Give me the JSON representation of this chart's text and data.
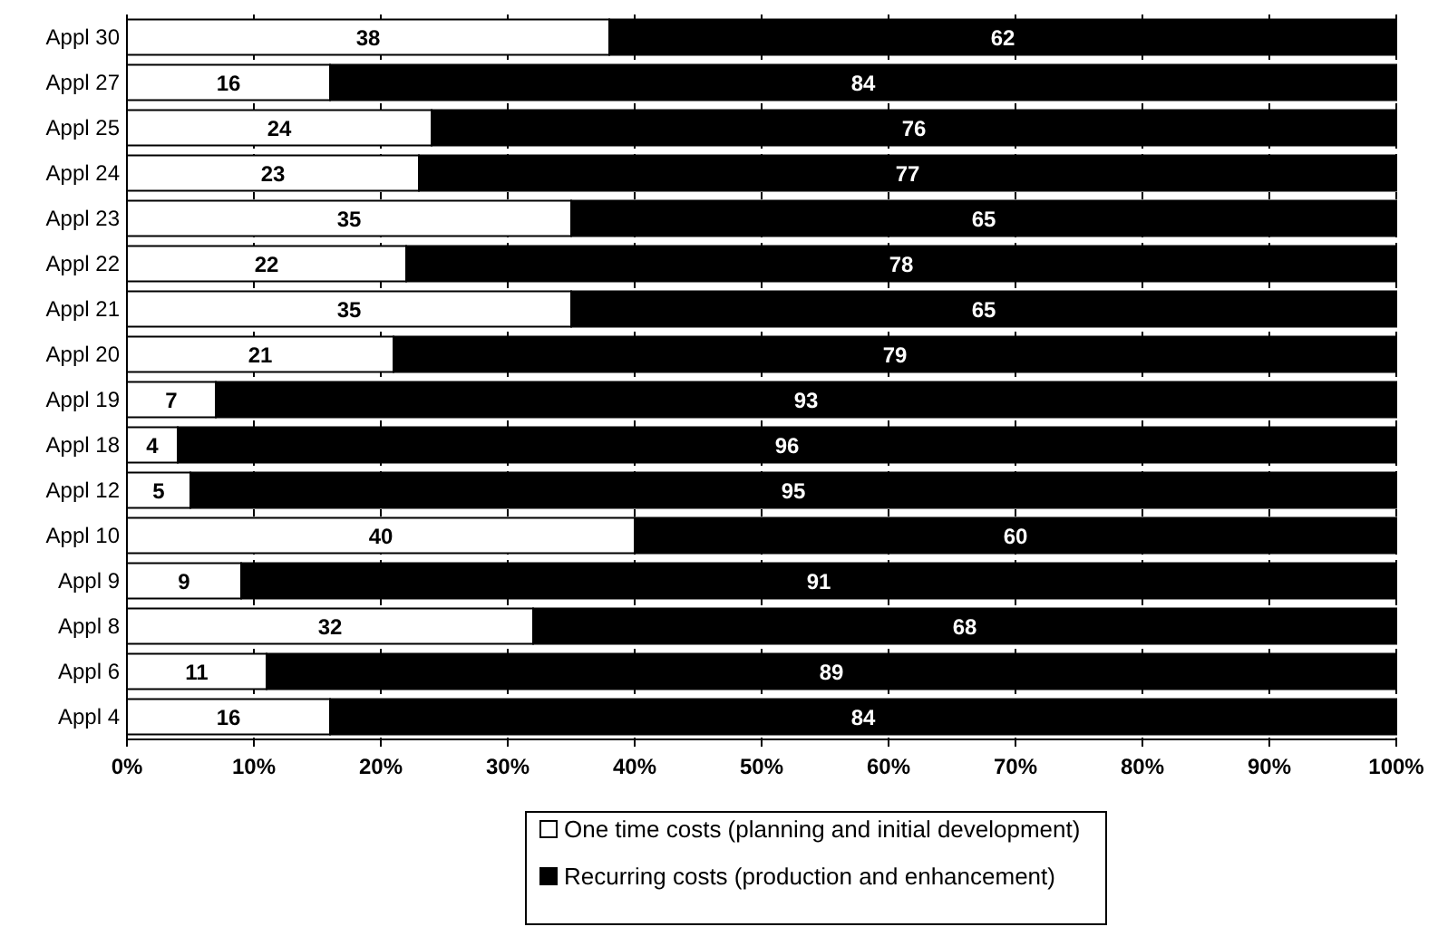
{
  "chart_data": {
    "type": "bar",
    "orientation": "horizontal",
    "stacked": true,
    "data_labels": true,
    "grid": "x",
    "legend": "bottom",
    "categories": [
      "Appl 30",
      "Appl 27",
      "Appl 25",
      "Appl 24",
      "Appl 23",
      "Appl 22",
      "Appl 21",
      "Appl 20",
      "Appl 19",
      "Appl 18",
      "Appl 12",
      "Appl 10",
      "Appl 9",
      "Appl 8",
      "Appl 6",
      "Appl 4"
    ],
    "series": [
      {
        "name": "One time costs (planning and initial development)",
        "color": "#ffffff",
        "values": [
          38,
          16,
          24,
          23,
          35,
          22,
          35,
          21,
          7,
          4,
          5,
          40,
          9,
          32,
          11,
          16
        ]
      },
      {
        "name": "Recurring costs (production and enhancement)",
        "color": "#000000",
        "values": [
          62,
          84,
          76,
          77,
          65,
          78,
          65,
          79,
          93,
          96,
          95,
          60,
          91,
          68,
          89,
          84
        ]
      }
    ],
    "xlim": [
      0,
      100
    ],
    "xticks": [
      {
        "value": 0,
        "label": "0%"
      },
      {
        "value": 10,
        "label": "10%"
      },
      {
        "value": 20,
        "label": "20%"
      },
      {
        "value": 30,
        "label": "30%"
      },
      {
        "value": 40,
        "label": "40%"
      },
      {
        "value": 50,
        "label": "50%"
      },
      {
        "value": 60,
        "label": "60%"
      },
      {
        "value": 70,
        "label": "70%"
      },
      {
        "value": 80,
        "label": "80%"
      },
      {
        "value": 90,
        "label": "90%"
      },
      {
        "value": 100,
        "label": "100%"
      }
    ]
  }
}
